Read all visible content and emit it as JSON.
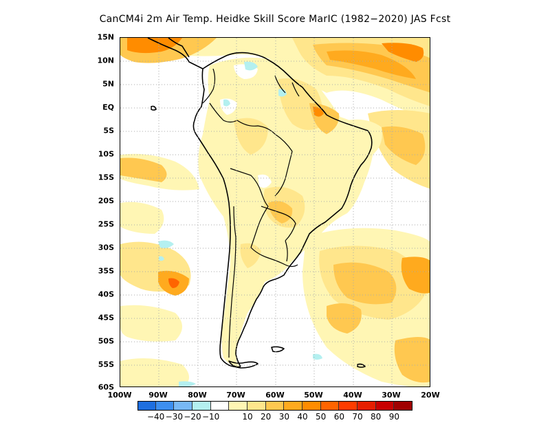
{
  "title": "CanCM4i  2m Air Temp. Heidke Skill Score MarIC (1982−2020) JAS Fcst",
  "map": {
    "region": "South America",
    "lat_labels": [
      "15N",
      "10N",
      "5N",
      "EQ",
      "5S",
      "10S",
      "15S",
      "20S",
      "25S",
      "30S",
      "35S",
      "40S",
      "45S",
      "50S",
      "55S",
      "60S"
    ],
    "lon_labels": [
      "100W",
      "90W",
      "80W",
      "70W",
      "60W",
      "50W",
      "40W",
      "30W",
      "20W"
    ],
    "land_color": "#000000",
    "grid": "dotted"
  },
  "colorbar": {
    "colors": [
      "#1e6fe0",
      "#3d8ff0",
      "#78b8f5",
      "#b4f0f0",
      "#ffffff",
      "#fff6b4",
      "#ffe68c",
      "#ffc850",
      "#ffaa1e",
      "#ff8c00",
      "#ff6400",
      "#ff3c00",
      "#e61e00",
      "#c80000",
      "#a00000"
    ],
    "tick_labels": [
      "−40",
      "−30",
      "−20",
      "−10",
      "10",
      "20",
      "30",
      "40",
      "50",
      "60",
      "70",
      "80",
      "90"
    ]
  }
}
